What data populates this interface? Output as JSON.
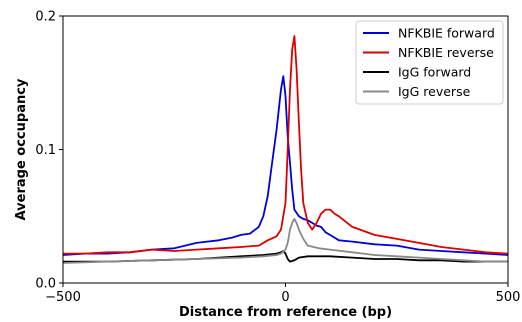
{
  "chart_data": {
    "type": "line",
    "title": "",
    "xlabel": "Distance from reference (bp)",
    "ylabel": "Average occupancy",
    "xlim": [
      -500,
      500
    ],
    "ylim": [
      0,
      0.2
    ],
    "xticks": [
      -500,
      0,
      500
    ],
    "xtick_labels": [
      "−500",
      "0",
      "500"
    ],
    "yticks": [
      0,
      0.1,
      0.2
    ],
    "ytick_labels": [
      "0.0",
      "0.1",
      "0.2"
    ],
    "grid": false,
    "legend_position": "top-right",
    "series": [
      {
        "name": "NFKBIE forward",
        "color": "#0000dd",
        "x": [
          -500,
          -450,
          -400,
          -350,
          -300,
          -250,
          -200,
          -150,
          -120,
          -100,
          -80,
          -60,
          -50,
          -40,
          -30,
          -20,
          -15,
          -10,
          -5,
          0,
          5,
          10,
          15,
          20,
          30,
          40,
          50,
          60,
          70,
          80,
          90,
          100,
          120,
          150,
          200,
          250,
          300,
          350,
          400,
          450,
          500
        ],
        "y": [
          0.021,
          0.022,
          0.022,
          0.023,
          0.025,
          0.026,
          0.03,
          0.032,
          0.034,
          0.036,
          0.037,
          0.042,
          0.05,
          0.065,
          0.09,
          0.115,
          0.13,
          0.145,
          0.155,
          0.14,
          0.11,
          0.09,
          0.07,
          0.055,
          0.05,
          0.048,
          0.047,
          0.045,
          0.043,
          0.042,
          0.038,
          0.036,
          0.032,
          0.031,
          0.029,
          0.028,
          0.025,
          0.024,
          0.023,
          0.022,
          0.021
        ]
      },
      {
        "name": "NFKBIE reverse",
        "color": "#dd0000",
        "x": [
          -500,
          -450,
          -400,
          -350,
          -300,
          -250,
          -200,
          -150,
          -100,
          -60,
          -40,
          -20,
          -10,
          0,
          5,
          10,
          15,
          20,
          25,
          30,
          35,
          40,
          50,
          60,
          70,
          80,
          90,
          100,
          110,
          120,
          150,
          200,
          250,
          300,
          350,
          400,
          450,
          500
        ],
        "y": [
          0.022,
          0.022,
          0.023,
          0.023,
          0.025,
          0.024,
          0.025,
          0.026,
          0.027,
          0.028,
          0.032,
          0.035,
          0.04,
          0.06,
          0.1,
          0.145,
          0.175,
          0.185,
          0.16,
          0.12,
          0.085,
          0.06,
          0.045,
          0.04,
          0.045,
          0.052,
          0.055,
          0.055,
          0.052,
          0.05,
          0.042,
          0.036,
          0.033,
          0.03,
          0.027,
          0.025,
          0.023,
          0.022
        ]
      },
      {
        "name": "IgG forward",
        "color": "#000000",
        "x": [
          -500,
          -400,
          -300,
          -200,
          -100,
          -50,
          -20,
          -10,
          -5,
          0,
          5,
          10,
          20,
          30,
          50,
          100,
          150,
          200,
          250,
          300,
          350,
          400,
          450,
          500
        ],
        "y": [
          0.016,
          0.016,
          0.017,
          0.018,
          0.02,
          0.021,
          0.022,
          0.023,
          0.024,
          0.022,
          0.018,
          0.016,
          0.017,
          0.019,
          0.02,
          0.02,
          0.019,
          0.018,
          0.018,
          0.017,
          0.017,
          0.016,
          0.016,
          0.016
        ]
      },
      {
        "name": "IgG reverse",
        "color": "#888888",
        "x": [
          -500,
          -400,
          -300,
          -200,
          -100,
          -50,
          -20,
          -10,
          0,
          5,
          10,
          15,
          20,
          25,
          30,
          40,
          50,
          75,
          100,
          150,
          200,
          250,
          300,
          350,
          400,
          450,
          500
        ],
        "y": [
          0.015,
          0.016,
          0.017,
          0.018,
          0.019,
          0.02,
          0.021,
          0.022,
          0.025,
          0.03,
          0.04,
          0.045,
          0.048,
          0.045,
          0.04,
          0.033,
          0.028,
          0.026,
          0.025,
          0.023,
          0.021,
          0.02,
          0.019,
          0.018,
          0.017,
          0.016,
          0.016
        ]
      }
    ]
  }
}
